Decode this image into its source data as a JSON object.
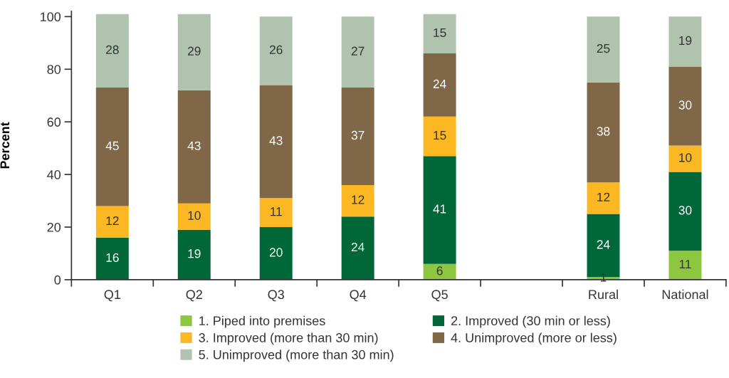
{
  "chart_data": {
    "type": "bar",
    "stacked": true,
    "ylabel": "Percent",
    "categories": [
      "Q1",
      "Q2",
      "Q3",
      "Q4",
      "Q5",
      null,
      "Rural",
      "National"
    ],
    "series": [
      {
        "name": "1. Piped into premises",
        "color": "#8dc63f",
        "values": [
          null,
          null,
          null,
          null,
          6,
          null,
          1,
          11
        ]
      },
      {
        "name": "2. Improved (30 min or less)",
        "color": "#006838",
        "values": [
          16,
          19,
          20,
          24,
          41,
          null,
          24,
          30
        ]
      },
      {
        "name": "3. Improved (more than 30 min)",
        "color": "#fbb823",
        "values": [
          12,
          10,
          11,
          12,
          15,
          null,
          12,
          10
        ]
      },
      {
        "name": "4. Unimproved (more or less)",
        "color": "#7f6748",
        "values": [
          45,
          43,
          43,
          37,
          24,
          null,
          38,
          30
        ]
      },
      {
        "name": "5. Unimproved (more than 30 min)",
        "color": "#afc3ae",
        "values": [
          28,
          29,
          26,
          27,
          15,
          null,
          25,
          19
        ]
      }
    ],
    "ylim": [
      0,
      102
    ],
    "yticks": [
      0,
      20,
      40,
      60,
      80,
      100
    ],
    "data_labels": true,
    "legend": "bottom",
    "grid": false
  }
}
